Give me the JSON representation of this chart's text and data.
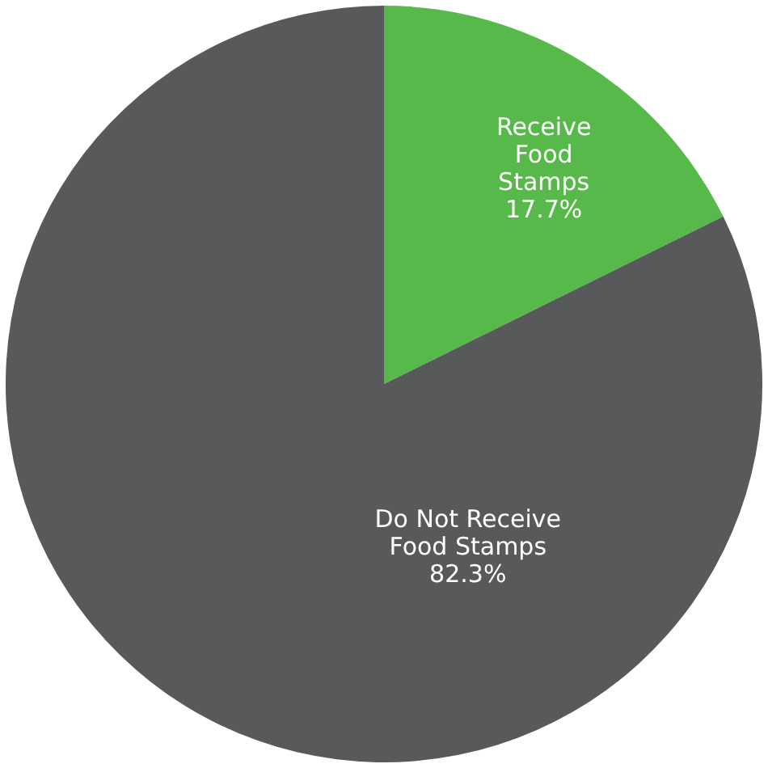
{
  "chart_data": {
    "type": "pie",
    "categories": [
      "Receive Food Stamps",
      "Do Not Receive Food Stamps"
    ],
    "values": [
      17.7,
      82.3
    ],
    "colors": [
      "#56b94a",
      "#58595b"
    ],
    "value_labels": [
      "17.7%",
      "82.3%"
    ],
    "legend": false
  }
}
